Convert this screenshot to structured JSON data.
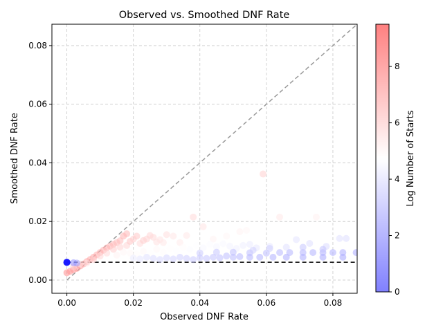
{
  "chart_data": {
    "type": "scatter",
    "title": "Observed vs. Smoothed DNF Rate",
    "xlabel": "Observed DNF Rate",
    "ylabel": "Smoothed DNF Rate",
    "xlim": [
      -0.0045,
      0.0873
    ],
    "ylim": [
      -0.0045,
      0.0873
    ],
    "x_ticks": [
      "0.00",
      "0.02",
      "0.04",
      "0.06",
      "0.08"
    ],
    "y_ticks": [
      "0.00",
      "0.02",
      "0.04",
      "0.06",
      "0.08"
    ],
    "grid": true,
    "colorbar": {
      "label": "Log Number of Starts",
      "min": 0,
      "max": 9.5,
      "ticks": [
        "0",
        "2",
        "4",
        "6",
        "8"
      ],
      "colormap": "bwr",
      "low_color": "#8080ff",
      "mid_color": "#ffffff",
      "high_color": "#ff8080"
    },
    "reference_lines": [
      {
        "kind": "identity",
        "style": "dashed",
        "color": "#999999"
      },
      {
        "kind": "horizontal",
        "y": 0.0061,
        "style": "dashed",
        "color": "#000000"
      }
    ],
    "points": [
      [
        0.0,
        0.0061,
        0.0
      ],
      [
        0.0,
        0.006,
        0.3
      ],
      [
        0.0,
        0.0025,
        9.0
      ],
      [
        0.001,
        0.003,
        8.8
      ],
      [
        0.002,
        0.0035,
        8.6
      ],
      [
        0.003,
        0.004,
        8.5
      ],
      [
        0.004,
        0.0048,
        8.4
      ],
      [
        0.005,
        0.0055,
        8.3
      ],
      [
        0.006,
        0.0063,
        8.2
      ],
      [
        0.007,
        0.007,
        8.1
      ],
      [
        0.008,
        0.0078,
        8.0
      ],
      [
        0.009,
        0.0086,
        7.9
      ],
      [
        0.01,
        0.0094,
        7.8
      ],
      [
        0.011,
        0.0102,
        7.8
      ],
      [
        0.012,
        0.011,
        7.6
      ],
      [
        0.013,
        0.0116,
        7.5
      ],
      [
        0.014,
        0.0122,
        7.4
      ],
      [
        0.015,
        0.0128,
        7.3
      ],
      [
        0.016,
        0.0134,
        7.3
      ],
      [
        0.017,
        0.015,
        7.6
      ],
      [
        0.018,
        0.0158,
        7.4
      ],
      [
        0.002,
        0.0045,
        6.5
      ],
      [
        0.004,
        0.0055,
        6.0
      ],
      [
        0.006,
        0.0058,
        5.8
      ],
      [
        0.008,
        0.007,
        6.5
      ],
      [
        0.01,
        0.0082,
        6.3
      ],
      [
        0.012,
        0.0092,
        6.2
      ],
      [
        0.014,
        0.0105,
        6.6
      ],
      [
        0.016,
        0.0112,
        6.4
      ],
      [
        0.018,
        0.0118,
        6.3
      ],
      [
        0.019,
        0.0132,
        6.9
      ],
      [
        0.02,
        0.014,
        6.5
      ],
      [
        0.021,
        0.015,
        6.8
      ],
      [
        0.022,
        0.0125,
        6.1
      ],
      [
        0.023,
        0.0135,
        6.6
      ],
      [
        0.024,
        0.014,
        6.4
      ],
      [
        0.025,
        0.0152,
        6.3
      ],
      [
        0.026,
        0.0146,
        6.2
      ],
      [
        0.027,
        0.013,
        5.9
      ],
      [
        0.028,
        0.0138,
        5.8
      ],
      [
        0.029,
        0.0128,
        5.6
      ],
      [
        0.03,
        0.0155,
        6.0
      ],
      [
        0.032,
        0.015,
        5.7
      ],
      [
        0.034,
        0.0128,
        5.5
      ],
      [
        0.036,
        0.0152,
        5.6
      ],
      [
        0.038,
        0.0215,
        6.2
      ],
      [
        0.041,
        0.0182,
        5.8
      ],
      [
        0.059,
        0.0362,
        6.5
      ],
      [
        0.064,
        0.0215,
        5.6
      ],
      [
        0.075,
        0.0215,
        5.3
      ],
      [
        0.052,
        0.0165,
        5.2
      ],
      [
        0.048,
        0.015,
        5.1
      ],
      [
        0.054,
        0.017,
        5.1
      ],
      [
        0.044,
        0.014,
        5.2
      ],
      [
        0.015,
        0.0085,
        5.2
      ],
      [
        0.017,
        0.0095,
        5.1
      ],
      [
        0.019,
        0.0092,
        5.0
      ],
      [
        0.021,
        0.0088,
        4.9
      ],
      [
        0.023,
        0.0098,
        5.0
      ],
      [
        0.025,
        0.009,
        4.8
      ],
      [
        0.027,
        0.0105,
        5.0
      ],
      [
        0.029,
        0.0095,
        4.9
      ],
      [
        0.031,
        0.0108,
        4.8
      ],
      [
        0.033,
        0.01,
        4.7
      ],
      [
        0.035,
        0.0112,
        4.9
      ],
      [
        0.037,
        0.0104,
        4.6
      ],
      [
        0.039,
        0.0118,
        4.7
      ],
      [
        0.041,
        0.011,
        4.5
      ],
      [
        0.043,
        0.0122,
        4.6
      ],
      [
        0.045,
        0.0114,
        4.4
      ],
      [
        0.047,
        0.0124,
        4.5
      ],
      [
        0.049,
        0.0116,
        4.3
      ],
      [
        0.051,
        0.0108,
        4.2
      ],
      [
        0.053,
        0.0118,
        4.1
      ],
      [
        0.055,
        0.0122,
        4.0
      ],
      [
        0.057,
        0.011,
        3.9
      ],
      [
        0.061,
        0.0115,
        3.8
      ],
      [
        0.066,
        0.0112,
        3.6
      ],
      [
        0.069,
        0.0138,
        3.7
      ],
      [
        0.073,
        0.0125,
        3.5
      ],
      [
        0.078,
        0.0115,
        3.4
      ],
      [
        0.082,
        0.0142,
        3.6
      ],
      [
        0.084,
        0.0142,
        3.5
      ],
      [
        0.02,
        0.0075,
        4.0
      ],
      [
        0.022,
        0.0072,
        3.8
      ],
      [
        0.024,
        0.0078,
        3.6
      ],
      [
        0.026,
        0.0074,
        3.4
      ],
      [
        0.028,
        0.007,
        3.3
      ],
      [
        0.03,
        0.0076,
        3.2
      ],
      [
        0.032,
        0.0072,
        3.1
      ],
      [
        0.034,
        0.0078,
        3.0
      ],
      [
        0.036,
        0.0074,
        2.9
      ],
      [
        0.038,
        0.007,
        2.8
      ],
      [
        0.04,
        0.0076,
        2.7
      ],
      [
        0.042,
        0.0074,
        2.6
      ],
      [
        0.044,
        0.0078,
        2.5
      ],
      [
        0.046,
        0.0076,
        2.4
      ],
      [
        0.048,
        0.0082,
        2.3
      ],
      [
        0.05,
        0.0078,
        2.2
      ],
      [
        0.052,
        0.008,
        2.1
      ],
      [
        0.055,
        0.0078,
        2.0
      ],
      [
        0.058,
        0.0078,
        1.9
      ],
      [
        0.062,
        0.0078,
        1.8
      ],
      [
        0.066,
        0.0078,
        1.7
      ],
      [
        0.071,
        0.0078,
        1.6
      ],
      [
        0.077,
        0.0078,
        1.5
      ],
      [
        0.083,
        0.0078,
        1.4
      ],
      [
        0.04,
        0.0092,
        2.8
      ],
      [
        0.045,
        0.0095,
        2.6
      ],
      [
        0.05,
        0.0095,
        2.4
      ],
      [
        0.055,
        0.0093,
        2.3
      ],
      [
        0.06,
        0.0092,
        2.2
      ],
      [
        0.064,
        0.0094,
        2.1
      ],
      [
        0.067,
        0.0094,
        2.0
      ],
      [
        0.071,
        0.0094,
        1.9
      ],
      [
        0.074,
        0.0094,
        1.9
      ],
      [
        0.077,
        0.0094,
        1.8
      ],
      [
        0.08,
        0.0094,
        1.8
      ],
      [
        0.083,
        0.0094,
        1.7
      ],
      [
        0.087,
        0.0094,
        1.6
      ],
      [
        0.077,
        0.0105,
        2.5
      ],
      [
        0.071,
        0.0112,
        2.6
      ],
      [
        0.061,
        0.0108,
        2.9
      ],
      [
        0.056,
        0.0102,
        3.0
      ],
      [
        0.003,
        0.0058,
        1.0
      ],
      [
        0.002,
        0.0059,
        0.6
      ]
    ]
  }
}
